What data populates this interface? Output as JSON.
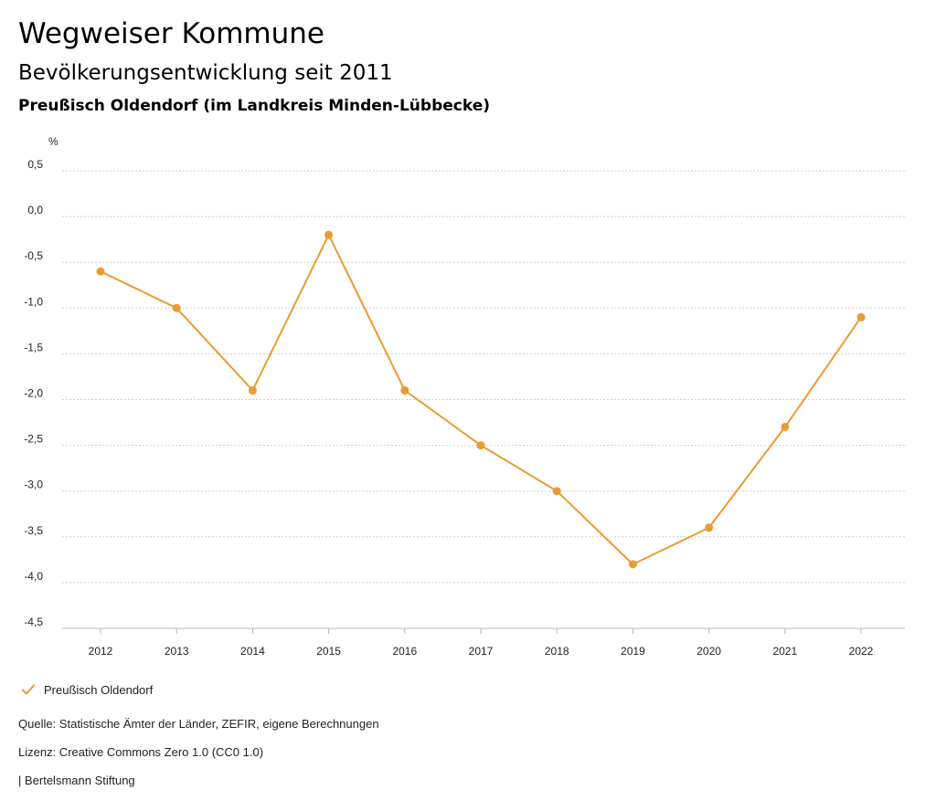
{
  "header": {
    "title": "Wegweiser Kommune",
    "subtitle": "Bevölkerungsentwicklung seit 2011",
    "region": "Preußisch Oldendorf (im Landkreis Minden-Lübbecke)"
  },
  "chart_data": {
    "type": "line",
    "ylabel": "%",
    "ylim": [
      -4.5,
      0.5
    ],
    "y_ticks": [
      "0,5",
      "0,0",
      "-0,5",
      "-1,0",
      "-1,5",
      "-2,0",
      "-2,5",
      "-3,0",
      "-3,5",
      "-4,0",
      "-4,5"
    ],
    "y_tick_values": [
      0.5,
      0.0,
      -0.5,
      -1.0,
      -1.5,
      -2.0,
      -2.5,
      -3.0,
      -3.5,
      -4.0,
      -4.5
    ],
    "categories": [
      "2012",
      "2013",
      "2014",
      "2015",
      "2016",
      "2017",
      "2018",
      "2019",
      "2020",
      "2021",
      "2022"
    ],
    "grid": true,
    "legend_position": "bottom-left",
    "series": [
      {
        "name": "Preußisch Oldendorf",
        "color": "#ec9a32",
        "values": [
          -0.6,
          -1.0,
          -1.9,
          -0.2,
          -1.9,
          -2.5,
          -3.0,
          -3.8,
          -3.4,
          -2.3,
          -1.1
        ]
      }
    ]
  },
  "legend": {
    "label": "Preußisch Oldendorf",
    "icon": "check-icon"
  },
  "footer": {
    "source": "Quelle: Statistische Ämter der Länder, ZEFIR, eigene Berechnungen",
    "license": "Lizenz: Creative Commons Zero 1.0 (CC0 1.0)",
    "publisher": "| Bertelsmann Stiftung"
  }
}
